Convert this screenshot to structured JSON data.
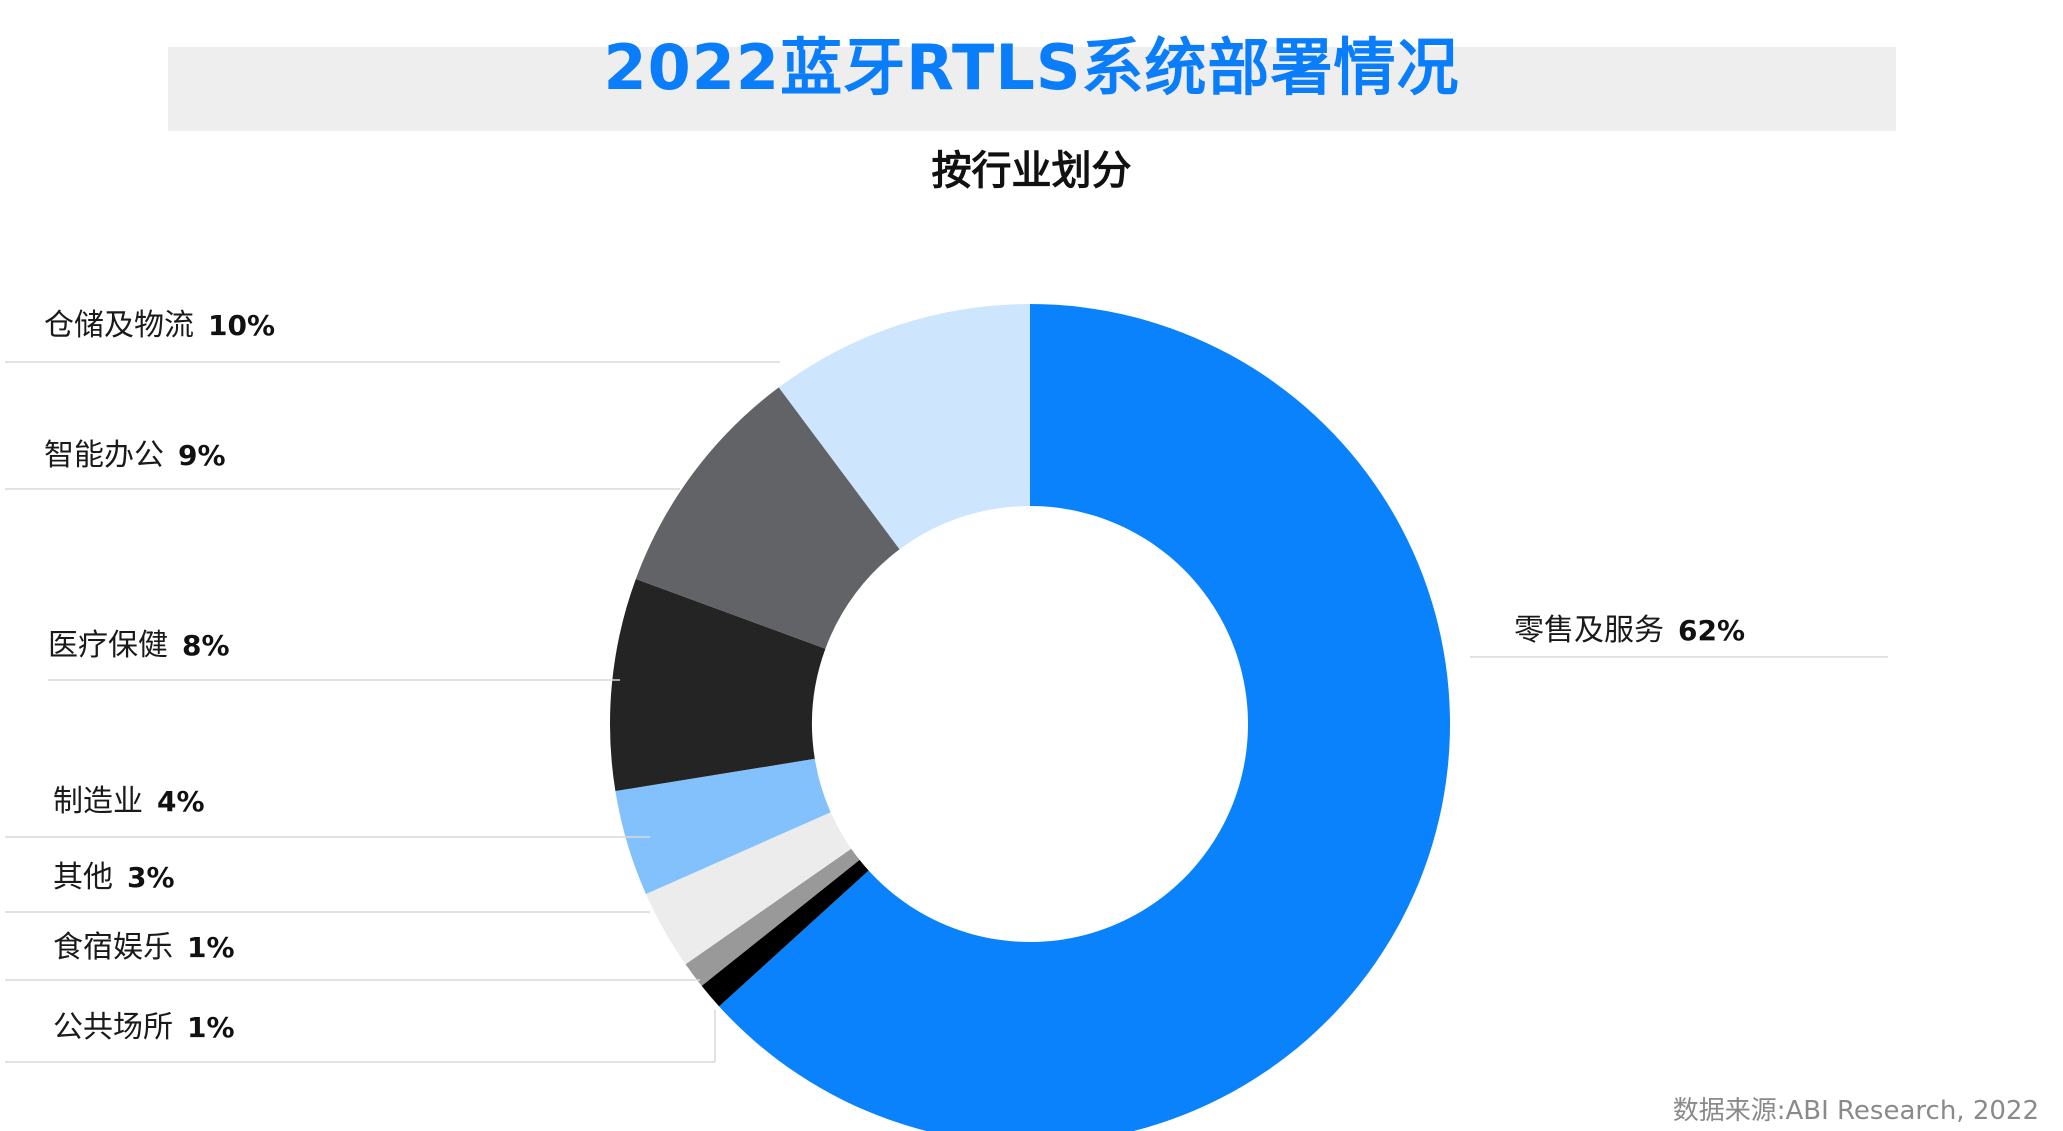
{
  "title": "2022蓝牙RTLS系统部署情况",
  "subtitle": "按行业划分",
  "source": "数据来源:ABI Research, 2022",
  "chart_data": {
    "type": "pie",
    "title": "2022蓝牙RTLS系统部署情况",
    "subtitle": "按行业划分",
    "donut": true,
    "legend": "none",
    "slices": [
      {
        "label": "零售及服务",
        "value": 62,
        "value_label": "62%",
        "color": "#0a82fb"
      },
      {
        "label": "公共场所",
        "value": 1,
        "value_label": "1%",
        "color": "#000000"
      },
      {
        "label": "食宿娱乐",
        "value": 1,
        "value_label": "1%",
        "color": "#999999"
      },
      {
        "label": "其他",
        "value": 3,
        "value_label": "3%",
        "color": "#ececec"
      },
      {
        "label": "制造业",
        "value": 4,
        "value_label": "4%",
        "color": "#82c1fc"
      },
      {
        "label": "医疗保健",
        "value": 8,
        "value_label": "8%",
        "color": "#242424"
      },
      {
        "label": "智能办公",
        "value": 9,
        "value_label": "9%",
        "color": "#626366"
      },
      {
        "label": "仓储及物流",
        "value": 10,
        "value_label": "10%",
        "color": "#cde6fd"
      }
    ]
  }
}
